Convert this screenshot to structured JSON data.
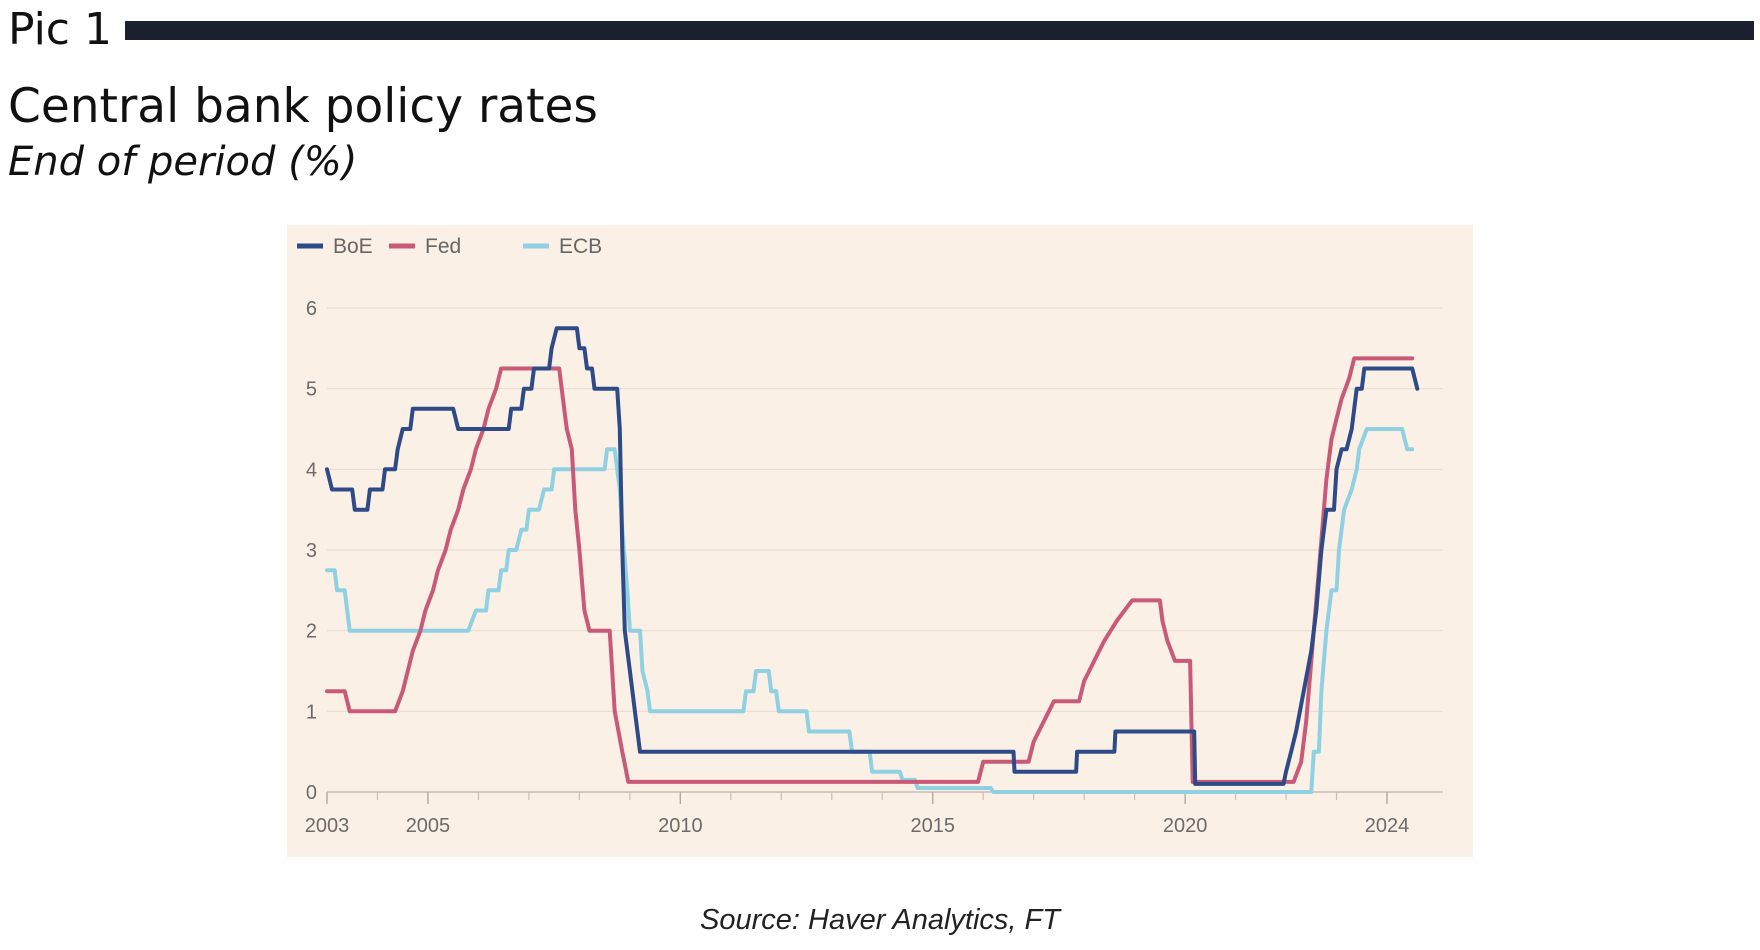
{
  "header": {
    "pic_label": "Pic 1",
    "title": "Central bank policy rates",
    "subtitle": "End of period (%)"
  },
  "source": "Source: Haver Analytics, FT",
  "chart_data": {
    "type": "line",
    "xlim": [
      2003,
      2024
    ],
    "ylim": [
      0,
      6
    ],
    "x_ticks": [
      2003,
      2005,
      2010,
      2015,
      2020,
      2024
    ],
    "x_tick_labels": [
      "2003",
      "2005",
      "2010",
      "2015",
      "2020",
      "2024"
    ],
    "y_ticks": [
      0,
      1,
      2,
      3,
      4,
      5,
      6
    ],
    "y_tick_labels": [
      "0",
      "1",
      "2",
      "3",
      "4",
      "5",
      "6"
    ],
    "grid": "horizontal",
    "legend_position": "top-left",
    "series": [
      {
        "name": "BoE",
        "color": "#2e4a87",
        "points": [
          [
            2003.0,
            4.0
          ],
          [
            2003.1,
            3.75
          ],
          [
            2003.5,
            3.75
          ],
          [
            2003.55,
            3.5
          ],
          [
            2003.8,
            3.5
          ],
          [
            2003.85,
            3.75
          ],
          [
            2004.1,
            3.75
          ],
          [
            2004.15,
            4.0
          ],
          [
            2004.35,
            4.0
          ],
          [
            2004.4,
            4.25
          ],
          [
            2004.5,
            4.5
          ],
          [
            2004.65,
            4.5
          ],
          [
            2004.7,
            4.75
          ],
          [
            2005.5,
            4.75
          ],
          [
            2005.6,
            4.5
          ],
          [
            2006.6,
            4.5
          ],
          [
            2006.65,
            4.75
          ],
          [
            2006.85,
            4.75
          ],
          [
            2006.9,
            5.0
          ],
          [
            2007.05,
            5.0
          ],
          [
            2007.1,
            5.25
          ],
          [
            2007.4,
            5.25
          ],
          [
            2007.45,
            5.5
          ],
          [
            2007.55,
            5.75
          ],
          [
            2007.95,
            5.75
          ],
          [
            2008.0,
            5.5
          ],
          [
            2008.1,
            5.5
          ],
          [
            2008.15,
            5.25
          ],
          [
            2008.25,
            5.25
          ],
          [
            2008.3,
            5.0
          ],
          [
            2008.75,
            5.0
          ],
          [
            2008.8,
            4.5
          ],
          [
            2008.85,
            3.0
          ],
          [
            2008.9,
            2.0
          ],
          [
            2009.0,
            1.5
          ],
          [
            2009.1,
            1.0
          ],
          [
            2009.2,
            0.5
          ],
          [
            2016.6,
            0.5
          ],
          [
            2016.62,
            0.25
          ],
          [
            2017.84,
            0.25
          ],
          [
            2017.86,
            0.5
          ],
          [
            2018.6,
            0.5
          ],
          [
            2018.62,
            0.75
          ],
          [
            2020.18,
            0.75
          ],
          [
            2020.2,
            0.1
          ],
          [
            2021.95,
            0.1
          ],
          [
            2022.0,
            0.25
          ],
          [
            2022.1,
            0.5
          ],
          [
            2022.2,
            0.75
          ],
          [
            2022.35,
            1.25
          ],
          [
            2022.5,
            1.75
          ],
          [
            2022.6,
            2.25
          ],
          [
            2022.7,
            3.0
          ],
          [
            2022.8,
            3.5
          ],
          [
            2022.95,
            3.5
          ],
          [
            2023.0,
            4.0
          ],
          [
            2023.1,
            4.25
          ],
          [
            2023.2,
            4.25
          ],
          [
            2023.3,
            4.5
          ],
          [
            2023.4,
            5.0
          ],
          [
            2023.5,
            5.0
          ],
          [
            2023.55,
            5.25
          ],
          [
            2024.5,
            5.25
          ],
          [
            2024.6,
            5.0
          ]
        ]
      },
      {
        "name": "Fed",
        "color": "#c85a78",
        "points": [
          [
            2003.0,
            1.25
          ],
          [
            2003.35,
            1.25
          ],
          [
            2003.45,
            1.0
          ],
          [
            2004.35,
            1.0
          ],
          [
            2004.5,
            1.25
          ],
          [
            2004.6,
            1.5
          ],
          [
            2004.7,
            1.75
          ],
          [
            2004.85,
            2.0
          ],
          [
            2004.95,
            2.25
          ],
          [
            2005.1,
            2.5
          ],
          [
            2005.2,
            2.75
          ],
          [
            2005.35,
            3.0
          ],
          [
            2005.45,
            3.25
          ],
          [
            2005.6,
            3.5
          ],
          [
            2005.7,
            3.75
          ],
          [
            2005.85,
            4.0
          ],
          [
            2005.95,
            4.25
          ],
          [
            2006.1,
            4.5
          ],
          [
            2006.2,
            4.75
          ],
          [
            2006.35,
            5.0
          ],
          [
            2006.45,
            5.25
          ],
          [
            2007.6,
            5.25
          ],
          [
            2007.7,
            4.75
          ],
          [
            2007.75,
            4.5
          ],
          [
            2007.85,
            4.25
          ],
          [
            2007.92,
            3.5
          ],
          [
            2008.0,
            3.0
          ],
          [
            2008.1,
            2.25
          ],
          [
            2008.2,
            2.0
          ],
          [
            2008.6,
            2.0
          ],
          [
            2008.7,
            1.0
          ],
          [
            2008.85,
            0.5
          ],
          [
            2008.97,
            0.125
          ],
          [
            2015.9,
            0.125
          ],
          [
            2016.0,
            0.375
          ],
          [
            2016.9,
            0.375
          ],
          [
            2017.0,
            0.625
          ],
          [
            2017.2,
            0.875
          ],
          [
            2017.4,
            1.125
          ],
          [
            2017.9,
            1.125
          ],
          [
            2018.0,
            1.375
          ],
          [
            2018.2,
            1.625
          ],
          [
            2018.4,
            1.875
          ],
          [
            2018.65,
            2.125
          ],
          [
            2018.95,
            2.375
          ],
          [
            2019.5,
            2.375
          ],
          [
            2019.55,
            2.125
          ],
          [
            2019.65,
            1.875
          ],
          [
            2019.8,
            1.625
          ],
          [
            2020.1,
            1.625
          ],
          [
            2020.15,
            0.125
          ],
          [
            2022.15,
            0.125
          ],
          [
            2022.3,
            0.375
          ],
          [
            2022.4,
            0.875
          ],
          [
            2022.5,
            1.625
          ],
          [
            2022.6,
            2.375
          ],
          [
            2022.7,
            3.125
          ],
          [
            2022.8,
            3.875
          ],
          [
            2022.9,
            4.375
          ],
          [
            2023.0,
            4.625
          ],
          [
            2023.1,
            4.875
          ],
          [
            2023.25,
            5.125
          ],
          [
            2023.35,
            5.375
          ],
          [
            2024.5,
            5.375
          ]
        ]
      },
      {
        "name": "ECB",
        "color": "#8fd1e3",
        "points": [
          [
            2003.0,
            2.75
          ],
          [
            2003.15,
            2.75
          ],
          [
            2003.2,
            2.5
          ],
          [
            2003.35,
            2.5
          ],
          [
            2003.45,
            2.0
          ],
          [
            2005.8,
            2.0
          ],
          [
            2005.95,
            2.25
          ],
          [
            2006.15,
            2.25
          ],
          [
            2006.2,
            2.5
          ],
          [
            2006.4,
            2.5
          ],
          [
            2006.45,
            2.75
          ],
          [
            2006.55,
            2.75
          ],
          [
            2006.6,
            3.0
          ],
          [
            2006.75,
            3.0
          ],
          [
            2006.85,
            3.25
          ],
          [
            2006.95,
            3.25
          ],
          [
            2007.0,
            3.5
          ],
          [
            2007.2,
            3.5
          ],
          [
            2007.3,
            3.75
          ],
          [
            2007.45,
            3.75
          ],
          [
            2007.5,
            4.0
          ],
          [
            2008.5,
            4.0
          ],
          [
            2008.55,
            4.25
          ],
          [
            2008.7,
            4.25
          ],
          [
            2008.8,
            3.75
          ],
          [
            2008.85,
            3.25
          ],
          [
            2008.95,
            2.5
          ],
          [
            2009.0,
            2.0
          ],
          [
            2009.2,
            2.0
          ],
          [
            2009.25,
            1.5
          ],
          [
            2009.35,
            1.25
          ],
          [
            2009.4,
            1.0
          ],
          [
            2011.25,
            1.0
          ],
          [
            2011.3,
            1.25
          ],
          [
            2011.45,
            1.25
          ],
          [
            2011.5,
            1.5
          ],
          [
            2011.75,
            1.5
          ],
          [
            2011.8,
            1.25
          ],
          [
            2011.9,
            1.25
          ],
          [
            2011.95,
            1.0
          ],
          [
            2012.5,
            1.0
          ],
          [
            2012.55,
            0.75
          ],
          [
            2013.35,
            0.75
          ],
          [
            2013.4,
            0.5
          ],
          [
            2013.75,
            0.5
          ],
          [
            2013.8,
            0.25
          ],
          [
            2014.35,
            0.25
          ],
          [
            2014.4,
            0.15
          ],
          [
            2014.65,
            0.15
          ],
          [
            2014.7,
            0.05
          ],
          [
            2016.15,
            0.05
          ],
          [
            2016.2,
            0.0
          ],
          [
            2022.5,
            0.0
          ],
          [
            2022.55,
            0.5
          ],
          [
            2022.65,
            0.5
          ],
          [
            2022.7,
            1.25
          ],
          [
            2022.8,
            2.0
          ],
          [
            2022.9,
            2.5
          ],
          [
            2023.0,
            2.5
          ],
          [
            2023.05,
            3.0
          ],
          [
            2023.15,
            3.5
          ],
          [
            2023.3,
            3.75
          ],
          [
            2023.4,
            4.0
          ],
          [
            2023.45,
            4.25
          ],
          [
            2023.6,
            4.5
          ],
          [
            2024.3,
            4.5
          ],
          [
            2024.4,
            4.25
          ],
          [
            2024.5,
            4.25
          ]
        ]
      }
    ]
  }
}
